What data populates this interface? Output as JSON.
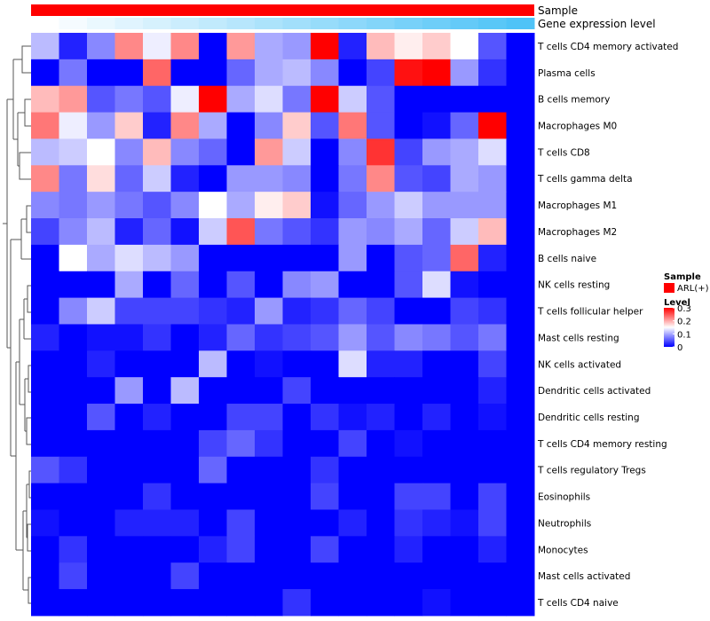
{
  "chart_data": {
    "type": "heatmap",
    "annotation_rows": [
      "Sample",
      "Gene expression level"
    ],
    "sample_group": "ARL(+)",
    "sample_color": "#ff0000",
    "expression_gradient": [
      "#ffffff",
      "#4fc3f7"
    ],
    "column_count": 18,
    "rows": [
      "T cells CD4 memory activated",
      "Plasma cells",
      "B cells memory",
      "Macrophages M0",
      "T cells CD8",
      "T cells gamma delta",
      "Macrophages M1",
      "Macrophages M2",
      "B cells naive",
      "NK cells resting",
      "T cells follicular helper",
      "Mast cells resting",
      "NK cells activated",
      "Dendritic cells activated",
      "Dendritic cells resting",
      "T cells CD4 memory resting",
      "T cells regulatory  Tregs",
      "Eosinophils",
      "Neutrophils",
      "Monocytes",
      "Mast cells activated",
      "T cells CD4 naive"
    ],
    "values": [
      [
        0.11,
        0.02,
        0.08,
        0.22,
        0.14,
        0.22,
        0.0,
        0.21,
        0.1,
        0.09,
        0.3,
        0.02,
        0.19,
        0.16,
        0.18,
        0.15,
        0.05,
        0.0
      ],
      [
        0.0,
        0.07,
        0.0,
        0.0,
        0.24,
        0.0,
        0.0,
        0.06,
        0.1,
        0.11,
        0.08,
        0.0,
        0.04,
        0.29,
        0.3,
        0.09,
        0.03,
        0.0
      ],
      [
        0.19,
        0.21,
        0.05,
        0.07,
        0.05,
        0.14,
        0.3,
        0.1,
        0.13,
        0.07,
        0.3,
        0.12,
        0.05,
        0.0,
        0.0,
        0.0,
        0.0,
        0.0
      ],
      [
        0.23,
        0.14,
        0.09,
        0.18,
        0.02,
        0.22,
        0.1,
        0.0,
        0.08,
        0.18,
        0.05,
        0.23,
        0.05,
        0.0,
        0.01,
        0.06,
        0.3,
        0.0
      ],
      [
        0.11,
        0.12,
        0.15,
        0.08,
        0.19,
        0.08,
        0.06,
        0.0,
        0.21,
        0.12,
        0.0,
        0.08,
        0.27,
        0.04,
        0.09,
        0.1,
        0.13,
        0.0
      ],
      [
        0.22,
        0.07,
        0.17,
        0.06,
        0.12,
        0.02,
        0.0,
        0.09,
        0.09,
        0.08,
        0.0,
        0.07,
        0.22,
        0.05,
        0.04,
        0.1,
        0.09,
        0.0
      ],
      [
        0.08,
        0.07,
        0.09,
        0.07,
        0.05,
        0.08,
        0.15,
        0.1,
        0.16,
        0.18,
        0.01,
        0.06,
        0.09,
        0.12,
        0.09,
        0.09,
        0.09,
        0.0
      ],
      [
        0.04,
        0.08,
        0.11,
        0.02,
        0.06,
        0.01,
        0.12,
        0.25,
        0.07,
        0.05,
        0.03,
        0.09,
        0.08,
        0.1,
        0.06,
        0.12,
        0.19,
        0.0
      ],
      [
        0.0,
        0.15,
        0.1,
        0.13,
        0.11,
        0.09,
        0.0,
        0.0,
        0.0,
        0.0,
        0.0,
        0.09,
        0.0,
        0.05,
        0.06,
        0.24,
        0.02,
        0.0
      ],
      [
        0.0,
        0.0,
        0.0,
        0.1,
        0.0,
        0.06,
        0.0,
        0.05,
        0.0,
        0.08,
        0.09,
        0.0,
        0.0,
        0.05,
        0.13,
        0.01,
        0.0,
        0.0
      ],
      [
        0.0,
        0.08,
        0.12,
        0.04,
        0.04,
        0.04,
        0.03,
        0.02,
        0.09,
        0.02,
        0.03,
        0.06,
        0.04,
        0.0,
        0.0,
        0.04,
        0.03,
        0.0
      ],
      [
        0.02,
        0.0,
        0.01,
        0.01,
        0.03,
        0.0,
        0.02,
        0.06,
        0.03,
        0.04,
        0.05,
        0.09,
        0.05,
        0.08,
        0.07,
        0.05,
        0.07,
        0.0
      ],
      [
        0.0,
        0.0,
        0.02,
        0.0,
        0.0,
        0.0,
        0.11,
        0.0,
        0.01,
        0.0,
        0.0,
        0.13,
        0.02,
        0.02,
        0.0,
        0.0,
        0.04,
        0.0
      ],
      [
        0.0,
        0.0,
        0.0,
        0.09,
        0.0,
        0.11,
        0.0,
        0.0,
        0.0,
        0.04,
        0.0,
        0.0,
        0.0,
        0.0,
        0.0,
        0.0,
        0.02,
        0.0
      ],
      [
        0.0,
        0.0,
        0.05,
        0.0,
        0.02,
        0.0,
        0.0,
        0.04,
        0.04,
        0.0,
        0.03,
        0.01,
        0.02,
        0.0,
        0.02,
        0.0,
        0.01,
        0.0
      ],
      [
        0.0,
        0.0,
        0.0,
        0.0,
        0.0,
        0.0,
        0.04,
        0.06,
        0.03,
        0.0,
        0.0,
        0.04,
        0.0,
        0.01,
        0.0,
        0.0,
        0.0,
        0.0
      ],
      [
        0.05,
        0.03,
        0.0,
        0.0,
        0.0,
        0.0,
        0.06,
        0.0,
        0.0,
        0.0,
        0.03,
        0.0,
        0.0,
        0.0,
        0.0,
        0.0,
        0.0,
        0.0
      ],
      [
        0.0,
        0.0,
        0.0,
        0.0,
        0.03,
        0.0,
        0.0,
        0.0,
        0.0,
        0.0,
        0.04,
        0.0,
        0.0,
        0.04,
        0.04,
        0.0,
        0.04,
        0.0
      ],
      [
        0.01,
        0.0,
        0.0,
        0.02,
        0.02,
        0.02,
        0.0,
        0.04,
        0.0,
        0.0,
        0.0,
        0.02,
        0.0,
        0.03,
        0.02,
        0.01,
        0.04,
        0.0
      ],
      [
        0.0,
        0.03,
        0.0,
        0.0,
        0.0,
        0.0,
        0.02,
        0.04,
        0.0,
        0.0,
        0.04,
        0.0,
        0.0,
        0.02,
        0.0,
        0.0,
        0.02,
        0.0
      ],
      [
        0.0,
        0.04,
        0.0,
        0.0,
        0.0,
        0.04,
        0.0,
        0.0,
        0.0,
        0.0,
        0.0,
        0.0,
        0.0,
        0.0,
        0.0,
        0.0,
        0.0,
        0.0
      ],
      [
        0.0,
        0.0,
        0.0,
        0.0,
        0.0,
        0.0,
        0.0,
        0.0,
        0.0,
        0.03,
        0.0,
        0.0,
        0.0,
        0.0,
        0.01,
        0.0,
        0.0,
        0.0
      ]
    ],
    "color_scale": {
      "min": 0,
      "mid": 0.15,
      "max": 0.3,
      "low_color": "#0000ff",
      "mid_color": "#ffffff",
      "high_color": "#ff0000"
    },
    "legend": {
      "sample_title": "Sample",
      "sample_label": "ARL(+)",
      "level_title": "Level",
      "ticks": [
        "0.3",
        "0.2",
        "0.1",
        "0"
      ],
      "tick_values": [
        0.3,
        0.2,
        0.1,
        0
      ]
    },
    "dendrogram": "row clustering dendrogram on left side"
  }
}
